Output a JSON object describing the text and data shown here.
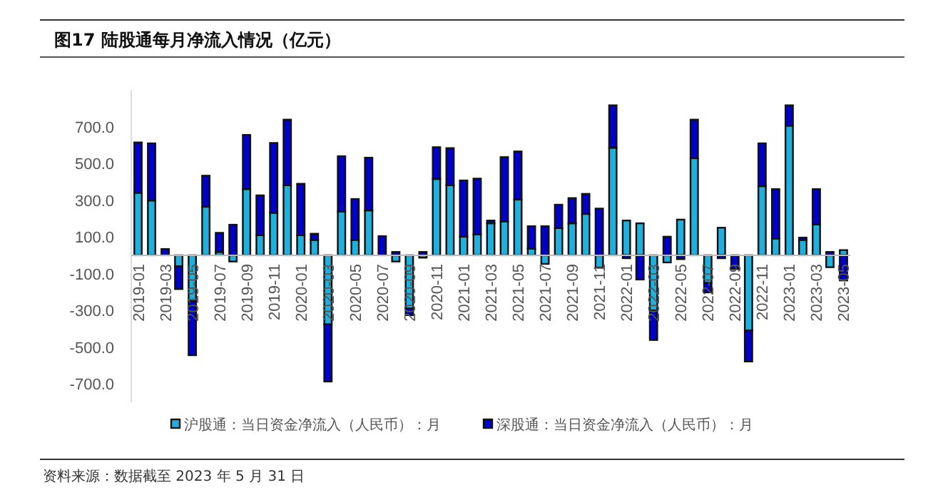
{
  "chart_data": {
    "type": "bar",
    "stacked": true,
    "title": "图17 陆股通每月净流入情况（亿元）",
    "annotations": [
      "资料来源：数据截至 2023 年 5 月 31 日"
    ],
    "categories": [
      "2019-01",
      null,
      "2019-03",
      null,
      "2019-05",
      null,
      "2019-07",
      null,
      "2019-09",
      null,
      "2019-11",
      null,
      "2020-01",
      null,
      "2020-03",
      null,
      "2020-05",
      null,
      "2020-07",
      null,
      "2020-09",
      null,
      "2020-11",
      null,
      "2021-01",
      null,
      "2021-03",
      null,
      "2021-05",
      null,
      "2021-07",
      null,
      "2021-09",
      null,
      "2021-11",
      null,
      "2022-01",
      null,
      "2022-03",
      null,
      "2022-05",
      null,
      "2022-07",
      null,
      "2022-09",
      null,
      "2022-11",
      null,
      "2023-01",
      null,
      "2023-03",
      null,
      "2023-05"
    ],
    "series": [
      {
        "name": "沪股通：当日资金净流入（人民币）：月",
        "color": "#1fb0de",
        "values": [
          340,
          298,
          null,
          -60,
          -250,
          264,
          18,
          -34,
          360,
          109,
          231,
          381,
          109,
          83,
          -376,
          238,
          83,
          244,
          0,
          -34,
          -290,
          -13,
          415,
          381,
          101,
          114,
          174,
          184,
          303,
          36,
          -47,
          148,
          174,
          225,
          -67,
          585,
          189,
          174,
          -300,
          -39,
          194,
          528,
          -150,
          150,
          null,
          -409,
          376,
          91,
          705,
          83,
          168,
          -65,
          28
        ]
      },
      {
        "name": "深股通：当日资金净流入（人民币）：月",
        "color": "#0000cc",
        "values": [
          274,
          311,
          34,
          -124,
          -294,
          169,
          104,
          166,
          295,
          217,
          380,
          357,
          280,
          34,
          -311,
          301,
          223,
          287,
          104,
          18,
          -36,
          18,
          173,
          202,
          306,
          303,
          15,
          350,
          262,
          122,
          158,
          127,
          137,
          109,
          254,
          231,
          -16,
          -132,
          -161,
          101,
          -21,
          210,
          -52,
          -16,
          -75,
          -169,
          233,
          269,
          111,
          13,
          192,
          18,
          -137
        ]
      }
    ],
    "ylim": [
      -800,
      900
    ],
    "yticks": [
      {
        "value": 700,
        "label": "700.0"
      },
      {
        "value": 500,
        "label": "500.0"
      },
      {
        "value": 300,
        "label": "300.0"
      },
      {
        "value": 100,
        "label": "100.0"
      },
      {
        "value": -100,
        "label": "-100.0"
      },
      {
        "value": -300,
        "label": "-300.0"
      },
      {
        "value": -500,
        "label": "-500.0"
      },
      {
        "value": -700,
        "label": "-700.0"
      }
    ],
    "legend": "bottom"
  }
}
